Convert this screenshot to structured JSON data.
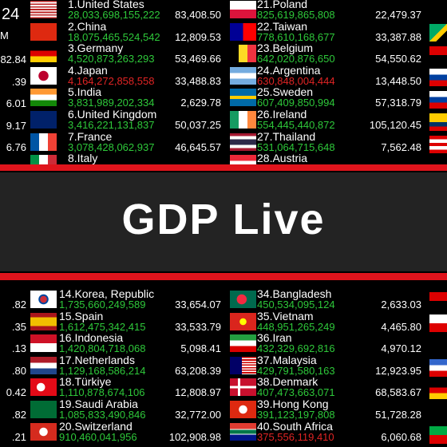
{
  "header": {
    "year_fragment": "24",
    "unit_fragment": "M"
  },
  "banner": {
    "title": "GDP Live"
  },
  "left_column": {
    "top": [
      "82.84",
      ".39",
      "6.01",
      "9.17",
      "6.76"
    ],
    "bottom": [
      ".82",
      ".35",
      ".13",
      ".80",
      "0.42",
      ".82",
      ".21"
    ]
  },
  "top_middle": [
    {
      "label": "1.United States",
      "gdp": "28,033,698,155,222",
      "per_capita": "83,408.50",
      "gdp_color": "#2ec83a"
    },
    {
      "label": "2.China",
      "gdp": "18,075,465,524,542",
      "per_capita": "12,809.53",
      "gdp_color": "#2ec83a"
    },
    {
      "label": "3.Germany",
      "gdp": "4,520,873,263,293",
      "per_capita": "53,469.66",
      "gdp_color": "#2ec83a"
    },
    {
      "label": "4.Japan",
      "gdp": "4,164,272,858,558",
      "per_capita": "33,488.83",
      "gdp_color": "#e02424"
    },
    {
      "label": "5.India",
      "gdp": "3,831,989,202,334",
      "per_capita": "2,629.78",
      "gdp_color": "#2ec83a"
    },
    {
      "label": "6.United Kingdom",
      "gdp": "3,416,221,131,837",
      "per_capita": "50,037.25",
      "gdp_color": "#2ec83a"
    },
    {
      "label": "7.France",
      "gdp": "3,078,428,062,937",
      "per_capita": "46,645.57",
      "gdp_color": "#2ec83a"
    },
    {
      "label": "8.Italy"
    }
  ],
  "top_right": [
    {
      "label": "21.Poland",
      "gdp": "825,619,865,808",
      "per_capita": "22,479.37",
      "gdp_color": "#2ec83a"
    },
    {
      "label": "22.Taiwan",
      "gdp": "778,610,168,677",
      "per_capita": "33,387.88",
      "gdp_color": "#2ec83a"
    },
    {
      "label": "23.Belgium",
      "gdp": "642,020,876,650",
      "per_capita": "54,550.62",
      "gdp_color": "#2ec83a"
    },
    {
      "label": "24.Argentina",
      "gdp": "630,848,004,444",
      "per_capita": "13,448.50",
      "gdp_color": "#e02424"
    },
    {
      "label": "25.Sweden",
      "gdp": "607,409,850,994",
      "per_capita": "57,318.79",
      "gdp_color": "#2ec83a"
    },
    {
      "label": "26.Ireland",
      "gdp": "554,445,440,872",
      "per_capita": "105,120.45",
      "gdp_color": "#2ec83a"
    },
    {
      "label": "27.Thailand",
      "gdp": "531,064,715,648",
      "per_capita": "7,562.48",
      "gdp_color": "#2ec83a"
    },
    {
      "label": "28.Austria"
    }
  ],
  "bottom_middle": [
    {
      "label": "14.Korea, Republic",
      "gdp": "1,735,660,249,589",
      "per_capita": "33,654.07",
      "gdp_color": "#2ec83a"
    },
    {
      "label": "15.Spain",
      "gdp": "1,612,475,342,415",
      "per_capita": "33,533.79",
      "gdp_color": "#2ec83a"
    },
    {
      "label": "16.Indonesia",
      "gdp": "1,420,804,718,068",
      "per_capita": "5,098.41",
      "gdp_color": "#2ec83a"
    },
    {
      "label": "17.Netherlands",
      "gdp": "1,129,168,586,214",
      "per_capita": "63,208.39",
      "gdp_color": "#2ec83a"
    },
    {
      "label": "18.Türkiye",
      "gdp": "1,110,878,674,106",
      "per_capita": "12,808.97",
      "gdp_color": "#2ec83a"
    },
    {
      "label": "19.Saudi Arabia",
      "gdp": "1,085,833,490,846",
      "per_capita": "32,772.00",
      "gdp_color": "#2ec83a"
    },
    {
      "label": "20.Switzerland",
      "gdp": "910,460,041,956",
      "per_capita": "102,908.98",
      "gdp_color": "#2ec83a"
    }
  ],
  "bottom_right": [
    {
      "label": "34.Bangladesh",
      "gdp": "450,534,095,124",
      "per_capita": "2,633.03",
      "gdp_color": "#2ec83a"
    },
    {
      "label": "35.Vietnam",
      "gdp": "448,951,265,249",
      "per_capita": "4,465.80",
      "gdp_color": "#2ec83a"
    },
    {
      "label": "36.Iran",
      "gdp": "432,329,692,816",
      "per_capita": "4,970.12",
      "gdp_color": "#2ec83a"
    },
    {
      "label": "37.Malaysia",
      "gdp": "429,791,580,163",
      "per_capita": "12,923.95",
      "gdp_color": "#2ec83a"
    },
    {
      "label": "38.Denmark",
      "gdp": "407,473,663,071",
      "per_capita": "68,583.67",
      "gdp_color": "#2ec83a"
    },
    {
      "label": "39.Hong Kong",
      "gdp": "391,123,197,808",
      "per_capita": "51,728.28",
      "gdp_color": "#2ec83a"
    },
    {
      "label": "40.South Africa",
      "gdp": "375,556,119,410",
      "per_capita": "6,060.68",
      "gdp_color": "#e02424"
    }
  ]
}
